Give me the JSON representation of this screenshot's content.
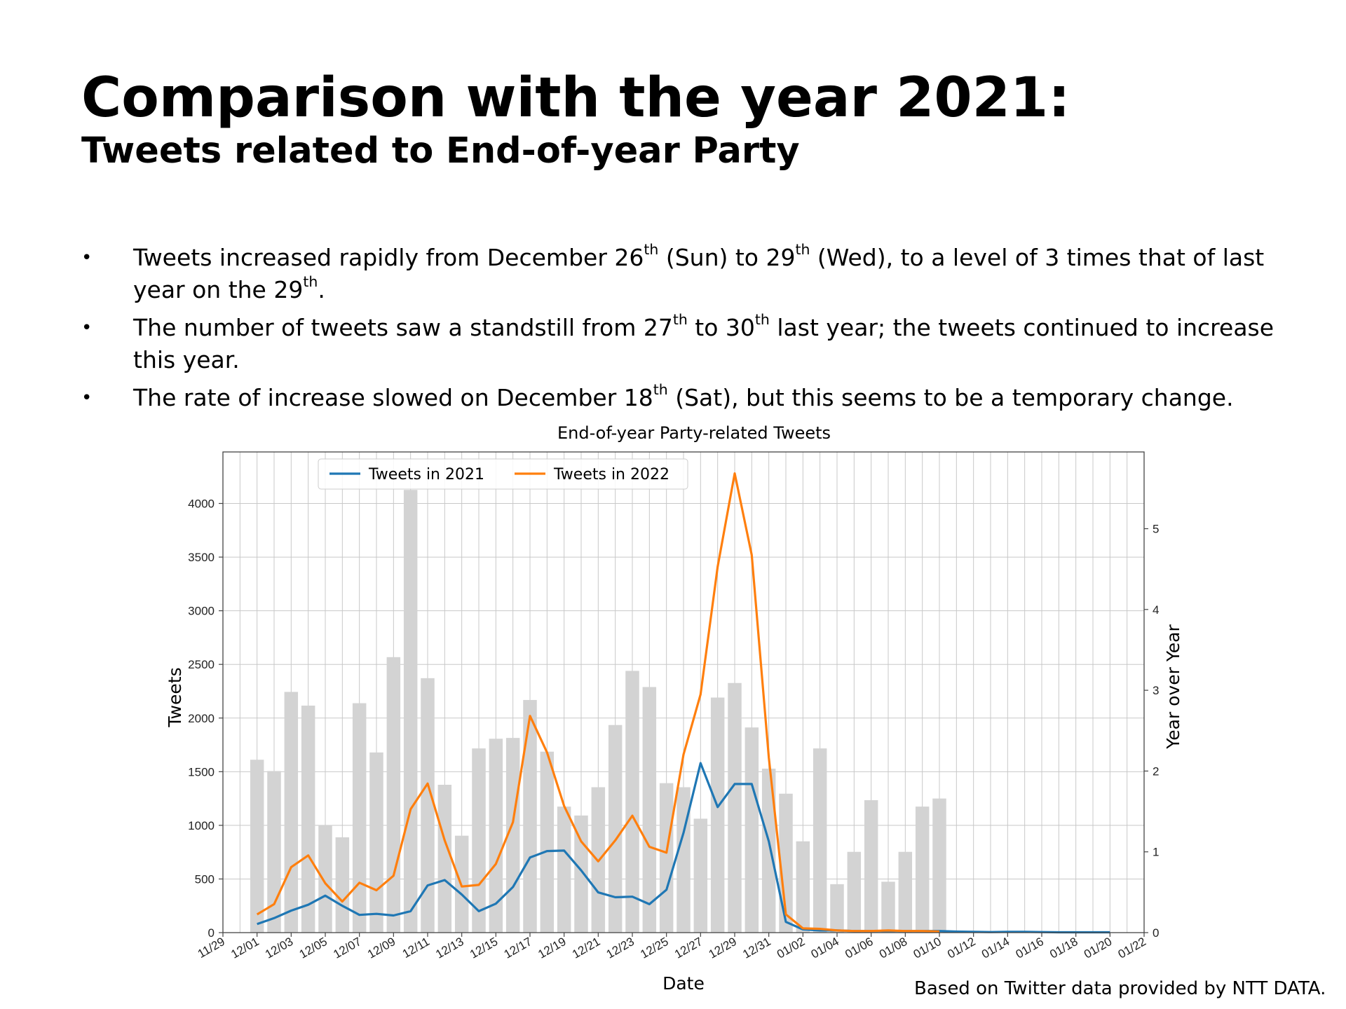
{
  "slide": {
    "title": "Comparison with the year 2021:",
    "subtitle": "Tweets related to End-of-year Party",
    "bullets": [
      {
        "parts": [
          {
            "t": "Tweets increased rapidly from December 26"
          },
          {
            "t": "th",
            "sup": true
          },
          {
            "t": " (Sun) to 29"
          },
          {
            "t": "th",
            "sup": true
          },
          {
            "t": " (Wed), to a level of 3 times that of last year on the 29"
          },
          {
            "t": "th",
            "sup": true
          },
          {
            "t": "."
          }
        ]
      },
      {
        "parts": [
          {
            "t": "The number of tweets saw a standstill from 27"
          },
          {
            "t": "th",
            "sup": true
          },
          {
            "t": " to 30"
          },
          {
            "t": "th",
            "sup": true
          },
          {
            "t": " last year; the tweets continued to increase this year."
          }
        ]
      },
      {
        "parts": [
          {
            "t": "The rate of increase slowed on December 18"
          },
          {
            "t": "th",
            "sup": true
          },
          {
            "t": " (Sat), but this seems to be a temporary change."
          }
        ]
      }
    ],
    "bullet_symbol": "•",
    "footnote": "Based on Twitter data provided by NTT DATA."
  },
  "chart_data": {
    "type": "bar",
    "title": "End-of-year Party-related Tweets",
    "xlabel": "Date",
    "ylabel": "Tweets",
    "y2label": "Year over Year",
    "grid": true,
    "legend_position": "top-center",
    "ylim": [
      0,
      4480
    ],
    "y2lim": [
      0,
      5.95
    ],
    "xlim": [
      "2022-11-29",
      "2023-01-22"
    ],
    "yticks": [
      0,
      500,
      1000,
      1500,
      2000,
      2500,
      3000,
      3500,
      4000
    ],
    "y2ticks": [
      0,
      1,
      2,
      3,
      4,
      5
    ],
    "xticks": [
      "11/29",
      "12/01",
      "12/03",
      "12/05",
      "12/07",
      "12/09",
      "12/11",
      "12/13",
      "12/15",
      "12/17",
      "12/19",
      "12/21",
      "12/23",
      "12/25",
      "12/27",
      "12/29",
      "12/31",
      "01/02",
      "01/04",
      "01/06",
      "01/08",
      "01/10",
      "01/12",
      "01/14",
      "01/16",
      "01/18",
      "01/20",
      "01/22"
    ],
    "bars": {
      "name": "Year over Year",
      "axis": "right",
      "color": "#d3d3d3",
      "x": [
        "2022-12-01",
        "2022-12-02",
        "2022-12-03",
        "2022-12-04",
        "2022-12-05",
        "2022-12-06",
        "2022-12-07",
        "2022-12-08",
        "2022-12-09",
        "2022-12-10",
        "2022-12-11",
        "2022-12-12",
        "2022-12-13",
        "2022-12-14",
        "2022-12-15",
        "2022-12-16",
        "2022-12-17",
        "2022-12-18",
        "2022-12-19",
        "2022-12-20",
        "2022-12-21",
        "2022-12-22",
        "2022-12-23",
        "2022-12-24",
        "2022-12-25",
        "2022-12-26",
        "2022-12-27",
        "2022-12-28",
        "2022-12-29",
        "2022-12-30",
        "2022-12-31",
        "2023-01-01",
        "2023-01-02",
        "2023-01-03",
        "2023-01-04",
        "2023-01-05",
        "2023-01-06",
        "2023-01-07",
        "2023-01-08",
        "2023-01-09",
        "2023-01-10"
      ],
      "values": [
        2.14,
        2.0,
        2.98,
        2.81,
        1.33,
        1.18,
        2.84,
        2.23,
        3.41,
        5.48,
        3.15,
        1.83,
        1.2,
        2.28,
        2.4,
        2.41,
        2.88,
        2.24,
        1.56,
        1.45,
        1.8,
        2.57,
        3.24,
        3.04,
        1.85,
        1.8,
        1.41,
        2.91,
        3.09,
        2.54,
        2.03,
        1.72,
        1.13,
        2.28,
        0.6,
        1.0,
        1.64,
        0.63,
        1.0,
        1.56,
        1.66
      ]
    },
    "series": [
      {
        "name": "Tweets in 2021",
        "axis": "left",
        "color": "#1f77b4",
        "x": [
          "2022-12-01",
          "2022-12-02",
          "2022-12-03",
          "2022-12-04",
          "2022-12-05",
          "2022-12-06",
          "2022-12-07",
          "2022-12-08",
          "2022-12-09",
          "2022-12-10",
          "2022-12-11",
          "2022-12-12",
          "2022-12-13",
          "2022-12-14",
          "2022-12-15",
          "2022-12-16",
          "2022-12-17",
          "2022-12-18",
          "2022-12-19",
          "2022-12-20",
          "2022-12-21",
          "2022-12-22",
          "2022-12-23",
          "2022-12-24",
          "2022-12-25",
          "2022-12-26",
          "2022-12-27",
          "2022-12-28",
          "2022-12-29",
          "2022-12-30",
          "2022-12-31",
          "2023-01-01",
          "2023-01-02",
          "2023-01-03",
          "2023-01-04",
          "2023-01-05",
          "2023-01-06",
          "2023-01-07",
          "2023-01-08",
          "2023-01-09",
          "2023-01-10",
          "2023-01-11",
          "2023-01-12",
          "2023-01-13",
          "2023-01-14",
          "2023-01-15",
          "2023-01-16",
          "2023-01-17",
          "2023-01-18",
          "2023-01-19",
          "2023-01-20"
        ],
        "values": [
          80,
          135,
          205,
          260,
          345,
          250,
          165,
          175,
          160,
          200,
          440,
          490,
          355,
          200,
          270,
          425,
          700,
          760,
          765,
          580,
          375,
          330,
          335,
          265,
          400,
          930,
          1580,
          1170,
          1385,
          1385,
          850,
          100,
          30,
          20,
          20,
          15,
          15,
          15,
          15,
          15,
          15,
          10,
          8,
          5,
          8,
          8,
          5,
          3,
          3,
          3,
          3
        ]
      },
      {
        "name": "Tweets in 2022",
        "axis": "left",
        "color": "#ff7f0e",
        "x": [
          "2022-12-01",
          "2022-12-02",
          "2022-12-03",
          "2022-12-04",
          "2022-12-05",
          "2022-12-06",
          "2022-12-07",
          "2022-12-08",
          "2022-12-09",
          "2022-12-10",
          "2022-12-11",
          "2022-12-12",
          "2022-12-13",
          "2022-12-14",
          "2022-12-15",
          "2022-12-16",
          "2022-12-17",
          "2022-12-18",
          "2022-12-19",
          "2022-12-20",
          "2022-12-21",
          "2022-12-22",
          "2022-12-23",
          "2022-12-24",
          "2022-12-25",
          "2022-12-26",
          "2022-12-27",
          "2022-12-28",
          "2022-12-29",
          "2022-12-30",
          "2022-12-31",
          "2023-01-01",
          "2023-01-02",
          "2023-01-03",
          "2023-01-04",
          "2023-01-05",
          "2023-01-06",
          "2023-01-07",
          "2023-01-08",
          "2023-01-09",
          "2023-01-10"
        ],
        "values": [
          170,
          265,
          610,
          720,
          460,
          290,
          465,
          395,
          530,
          1150,
          1390,
          860,
          430,
          445,
          640,
          1030,
          2020,
          1680,
          1180,
          850,
          665,
          860,
          1090,
          800,
          745,
          1660,
          2220,
          3410,
          4280,
          3520,
          1630,
          170,
          40,
          35,
          20,
          15,
          15,
          20,
          15,
          15,
          10
        ]
      }
    ]
  }
}
